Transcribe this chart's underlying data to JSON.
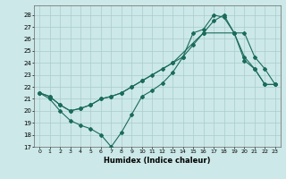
{
  "xlabel": "Humidex (Indice chaleur)",
  "bg_color": "#cce8e8",
  "grid_color": "#aacccc",
  "line_color": "#1a6b5a",
  "xlim": [
    -0.5,
    23.5
  ],
  "ylim": [
    17,
    28.8
  ],
  "yticks": [
    17,
    18,
    19,
    20,
    21,
    22,
    23,
    24,
    25,
    26,
    27,
    28
  ],
  "xticks": [
    0,
    1,
    2,
    3,
    4,
    5,
    6,
    7,
    8,
    9,
    10,
    11,
    12,
    13,
    14,
    15,
    16,
    17,
    18,
    19,
    20,
    21,
    22,
    23
  ],
  "series1_x": [
    0,
    1,
    2,
    3,
    4,
    5,
    6,
    7,
    8,
    9,
    10,
    11,
    12,
    13,
    14,
    15,
    16,
    17,
    18,
    19,
    20,
    21,
    22,
    23
  ],
  "series1_y": [
    21.5,
    21.0,
    20.0,
    19.2,
    18.8,
    18.5,
    18.0,
    17.0,
    18.2,
    19.7,
    21.2,
    21.7,
    22.3,
    23.2,
    24.5,
    26.5,
    26.8,
    28.0,
    27.8,
    26.5,
    24.2,
    23.5,
    22.2,
    22.2
  ],
  "series2_x": [
    0,
    1,
    2,
    3,
    4,
    5,
    6,
    7,
    8,
    9,
    10,
    11,
    12,
    13,
    14,
    15,
    16,
    17,
    18,
    19,
    20,
    21,
    22,
    23
  ],
  "series2_y": [
    21.5,
    21.2,
    20.5,
    20.0,
    20.2,
    20.5,
    21.0,
    21.2,
    21.5,
    22.0,
    22.5,
    23.0,
    23.5,
    24.0,
    24.5,
    25.5,
    26.5,
    27.5,
    28.0,
    26.5,
    26.5,
    24.5,
    23.5,
    22.2
  ],
  "series3_x": [
    0,
    1,
    2,
    3,
    4,
    5,
    6,
    7,
    8,
    9,
    10,
    13,
    16,
    19,
    20,
    21,
    22,
    23
  ],
  "series3_y": [
    21.5,
    21.2,
    20.5,
    20.0,
    20.2,
    20.5,
    21.0,
    21.2,
    21.5,
    22.0,
    22.5,
    24.0,
    26.5,
    26.5,
    24.5,
    23.5,
    22.2,
    22.2
  ]
}
